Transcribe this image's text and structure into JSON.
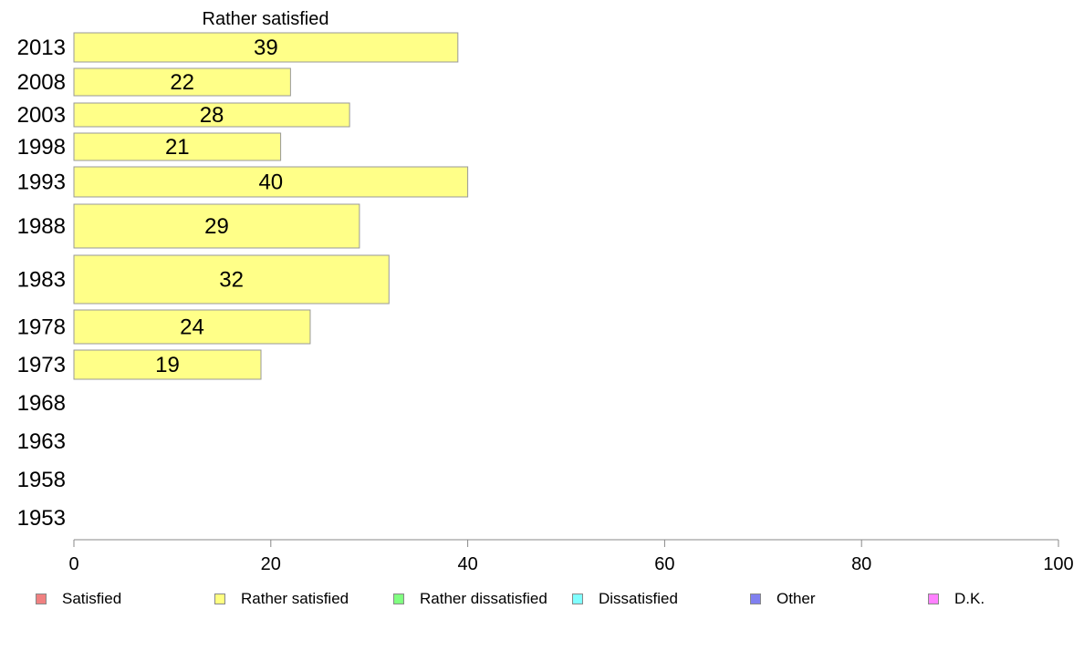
{
  "chart_data": {
    "type": "bar",
    "orientation": "horizontal",
    "title": "Rather satisfied",
    "categories": [
      "2013",
      "2008",
      "2003",
      "1998",
      "1993",
      "1988",
      "1983",
      "1978",
      "1973",
      "1968",
      "1963",
      "1958",
      "1953"
    ],
    "values": [
      39,
      22,
      28,
      21,
      40,
      29,
      32,
      24,
      19,
      null,
      null,
      null,
      null
    ],
    "xlim": [
      0,
      100
    ],
    "xticks": [
      "0",
      "20",
      "40",
      "60",
      "80",
      "100"
    ],
    "grid": false,
    "bar_color": "#ffff88",
    "legend_position": "bottom",
    "legend": [
      {
        "label": "Satisfied",
        "color": "#f08080"
      },
      {
        "label": "Rather satisfied",
        "color": "#ffff80"
      },
      {
        "label": "Rather dissatisfied",
        "color": "#80ff80"
      },
      {
        "label": "Dissatisfied",
        "color": "#80ffff"
      },
      {
        "label": "Other",
        "color": "#8080f0"
      },
      {
        "label": "D.K.",
        "color": "#ff80ff"
      }
    ]
  }
}
